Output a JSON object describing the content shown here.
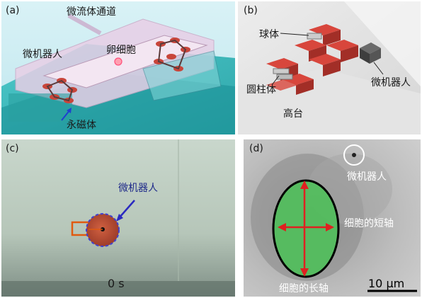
{
  "panels": {
    "a": {
      "label": "(a)",
      "microfluidic_channel": "微流体通道",
      "microrobot": "微机器人",
      "egg_cell": "卵细胞",
      "permanent_magnet": "永磁体"
    },
    "b": {
      "label": "(b)",
      "sphere": "球体",
      "cylinder": "圆柱体",
      "microrobot": "微机器人",
      "platform": "高台"
    },
    "c": {
      "label": "(c)",
      "microrobot": "微机器人",
      "time": "0 s"
    },
    "d": {
      "label": "(d)",
      "microrobot": "微机器人",
      "short_axis": "细胞的短轴",
      "long_axis": "细胞的长轴",
      "scale_bar": "10 μm"
    }
  },
  "colors": {
    "teal_base": "#2fb5b5",
    "chip_pink": "#e8cfe6",
    "robot_red": "#c8453a",
    "cell_green": "#4fbf5a",
    "arrow_red": "#e02020",
    "pointer_blue": "#2a2ac0",
    "marker_orange": "#e05a10"
  }
}
